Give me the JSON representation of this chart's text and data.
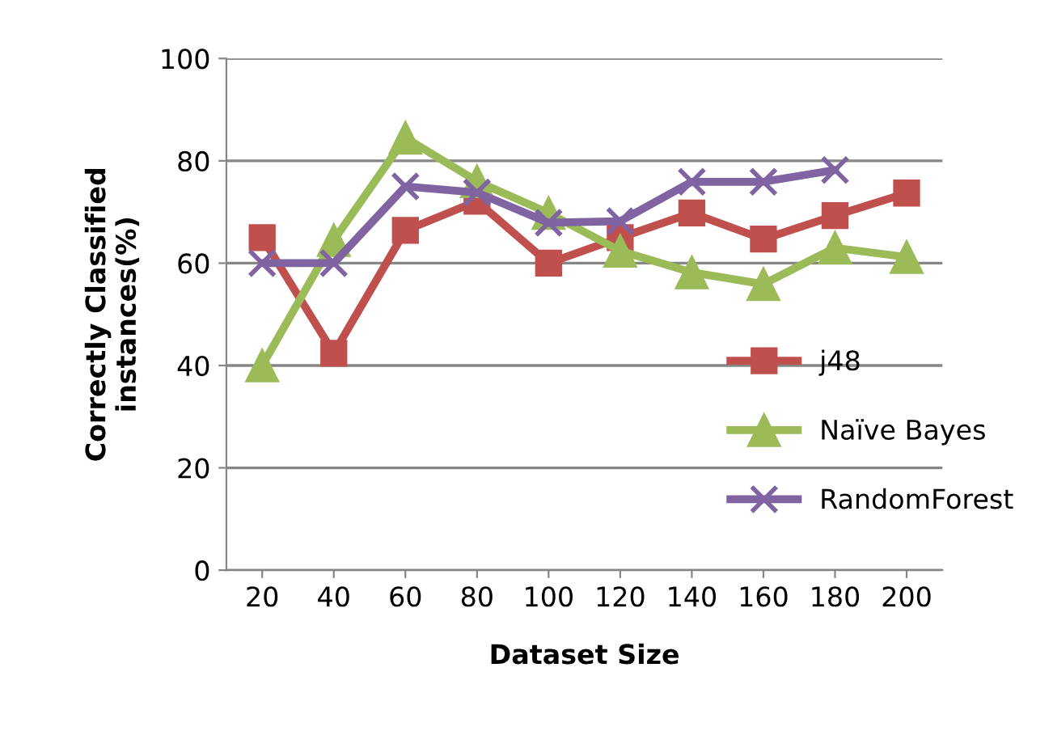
{
  "chart_data": {
    "type": "line",
    "xlabel": "Dataset Size",
    "ylabel": "Correctly Classified\ninstances(%)",
    "categories": [
      "20",
      "40",
      "60",
      "80",
      "100",
      "120",
      "140",
      "160",
      "180",
      "200"
    ],
    "ylim": [
      0,
      100
    ],
    "yticks": [
      0,
      20,
      40,
      60,
      80,
      100
    ],
    "grid": "y",
    "legend": "right",
    "series": [
      {
        "name": "j48",
        "color": "#c0504d",
        "marker": "square",
        "values": [
          65,
          42.4,
          66.4,
          72.1,
          60,
          65,
          69.8,
          64.7,
          69.3,
          73.7
        ]
      },
      {
        "name": "Naïve Bayes",
        "color": "#9bbb59",
        "marker": "triangle",
        "values": [
          40,
          64.5,
          84.5,
          76,
          69.8,
          62.4,
          58.2,
          55.9,
          63,
          61.2
        ]
      },
      {
        "name": "RandomForest",
        "color": "#8064a2",
        "marker": "cross",
        "values": [
          60,
          60,
          75,
          73.8,
          67.9,
          68.2,
          75.9,
          75.9,
          78.2,
          null
        ]
      }
    ]
  }
}
